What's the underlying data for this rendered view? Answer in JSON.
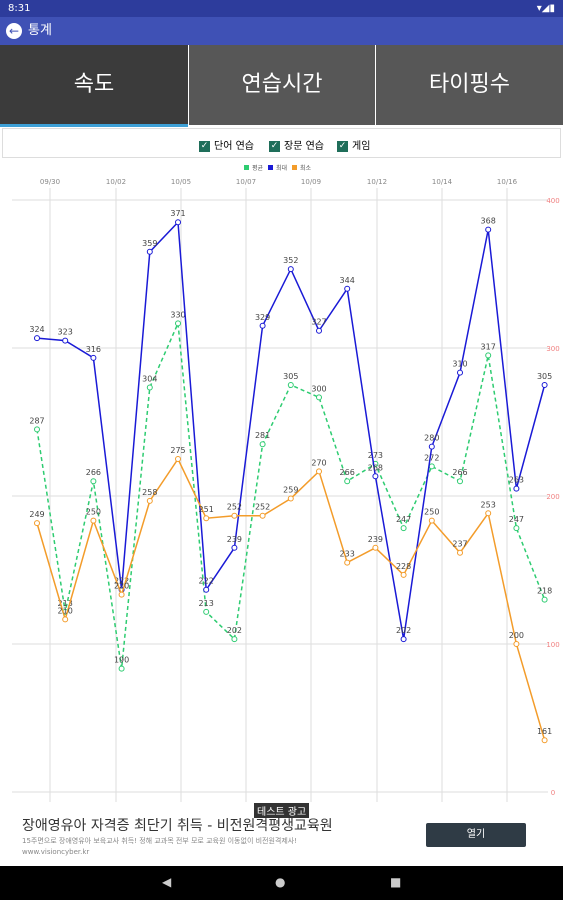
{
  "status_bar": {
    "time": "8:31"
  },
  "app_bar": {
    "title": "통계"
  },
  "tabs": [
    "속도",
    "연습시간",
    "타이핑수"
  ],
  "filters": [
    "단어 연습",
    "장문 연습",
    "게임"
  ],
  "chart_data": {
    "type": "line",
    "x_labels": [
      "09/30",
      "10/02",
      "10/05",
      "10/07",
      "10/09",
      "10/12",
      "10/14",
      "10/16"
    ],
    "ylim": [
      140,
      380
    ],
    "y2lim": [
      0,
      400
    ],
    "y2ticks": [
      0,
      100,
      200,
      300,
      400
    ],
    "grid": true,
    "series": [
      {
        "name": "평균",
        "color": "#2ecc71",
        "dashed": true,
        "values": [
          287,
          213,
          266,
          190,
          304,
          330,
          213,
          202,
          281,
          305,
          300,
          266,
          273,
          247,
          272,
          266,
          317,
          247,
          218
        ]
      },
      {
        "name": "최대",
        "color": "#1a1ad6",
        "dashed": false,
        "values": [
          324,
          323,
          316,
          222,
          359,
          371,
          222,
          239,
          329,
          352,
          327,
          344,
          268,
          202,
          280,
          310,
          368,
          263,
          305
        ]
      },
      {
        "name": "최소",
        "color": "#f39c2a",
        "dashed": false,
        "values": [
          249,
          210,
          250,
          220,
          258,
          275,
          251,
          252,
          252,
          259,
          270,
          233,
          239,
          228,
          250,
          237,
          253,
          200,
          161
        ]
      }
    ]
  },
  "ad": {
    "badge": "테스트 광고",
    "title": "장애영유아 자격증 최단기 취득 - 비전원격평생교육원",
    "description": "15주면으로 장애영유아 보육교사 취득! 정해 교과목 전부 모로 교육원 이동없이 비전원격제사!",
    "url": "www.visioncyber.kr",
    "button": "열기"
  }
}
